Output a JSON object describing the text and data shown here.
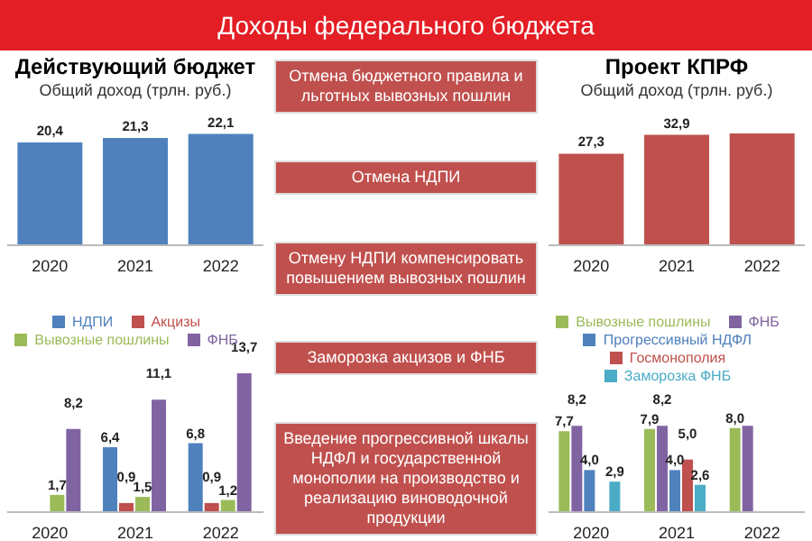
{
  "chart_data": [
    {
      "type": "other",
      "title": "Доходы федерального бюджета",
      "color": "#c0504d",
      "annotations": [
        "Отмена бюджетного правила и льготных вывозных пошлин",
        "Отмена НДПИ",
        "Отмену НДПИ компенсировать повышением вывозных пошлин",
        "Заморозка акцизов и ФНБ",
        "Введение прогрессивной шкалы НДФЛ и государственной монополии на производство и реализацию виноводочной продукции"
      ]
    },
    {
      "type": "bar",
      "title": "Действующий бюджет",
      "subtitle": "Общий доход (трлн. руб.)",
      "categories": [
        "2020",
        "2021",
        "2022"
      ],
      "values": [
        20.4,
        21.3,
        22.1
      ],
      "value_labels": [
        "20,4",
        "21,3",
        "22,1"
      ],
      "color": "#4f81bd"
    },
    {
      "type": "bar",
      "title": "Проект КПРФ",
      "subtitle": "Общий доход (трлн. руб.)",
      "categories": [
        "2020",
        "2021",
        "2022"
      ],
      "values": [
        27.3,
        32.9,
        33.3
      ],
      "value_labels": [
        "27,3",
        "32,9",
        null
      ],
      "color": "#c0504d"
    },
    {
      "type": "bar",
      "categories": [
        "2020",
        "2021",
        "2022"
      ],
      "legend": "top",
      "series": [
        {
          "name": "НДПИ",
          "color": "#4f81bd",
          "values": [
            null,
            6.4,
            6.8
          ],
          "value_labels": [
            null,
            "6,4",
            "6,8"
          ]
        },
        {
          "name": "Акцизы",
          "color": "#c0504d",
          "values": [
            null,
            0.9,
            0.9
          ],
          "value_labels": [
            null,
            "0,9",
            "0,9"
          ]
        },
        {
          "name": "Вывозные пошлины",
          "color": "#9bbb59",
          "values": [
            1.7,
            1.5,
            1.2
          ],
          "value_labels": [
            "1,7",
            "1,5",
            "1,2"
          ]
        },
        {
          "name": "ФНБ",
          "color": "#8064a2",
          "values": [
            8.2,
            11.1,
            13.7
          ],
          "value_labels": [
            "8,2",
            "11,1",
            "13,7"
          ]
        }
      ]
    },
    {
      "type": "bar",
      "categories": [
        "2020",
        "2021",
        "2022"
      ],
      "legend": "top",
      "series": [
        {
          "name": "Вывозные пошлины",
          "color": "#9bbb59",
          "values": [
            7.7,
            7.9,
            8.0
          ],
          "value_labels": [
            "7,7",
            "7,9",
            "8,0"
          ]
        },
        {
          "name": "ФНБ",
          "color": "#8064a2",
          "values": [
            8.2,
            8.2,
            8.2
          ],
          "value_labels": [
            "8,2",
            "8,2",
            null
          ]
        },
        {
          "name": "Прогрессивный НДФЛ",
          "color": "#4f81bd",
          "values": [
            4.0,
            4.0,
            null
          ],
          "value_labels": [
            "4,0",
            "4,0",
            null
          ]
        },
        {
          "name": "Госмонополия",
          "color": "#c0504d",
          "values": [
            null,
            5.0,
            null
          ],
          "value_labels": [
            null,
            "5,0",
            null
          ]
        },
        {
          "name": "Заморозка ФНБ",
          "color": "#4bacc6",
          "values": [
            2.9,
            2.6,
            null
          ],
          "value_labels": [
            "2,9",
            "2,6",
            null
          ]
        }
      ]
    }
  ]
}
